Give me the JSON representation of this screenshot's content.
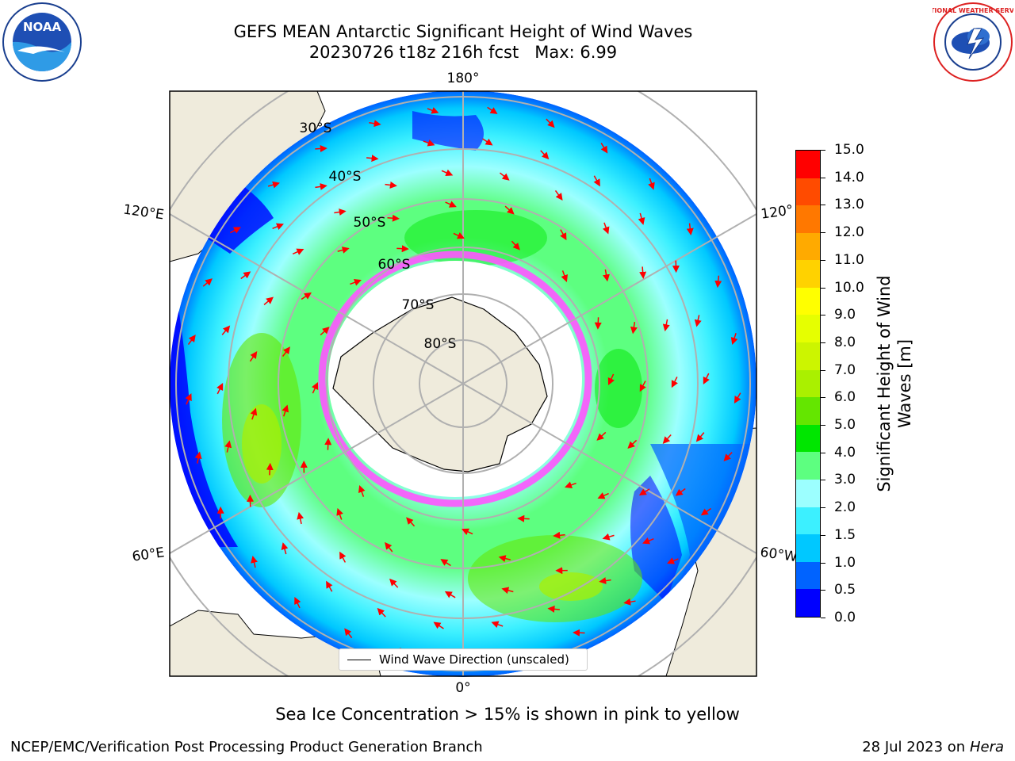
{
  "title": {
    "line1": "GEFS MEAN Antarctic Significant Height of Wind Waves",
    "line2": "20230726 t18z 216h fcst   Max: 6.99"
  },
  "legend": {
    "label": "Wind Wave Direction (unscaled)"
  },
  "note": "Sea Ice Concentration > 15% is shown in pink to yellow",
  "footer": {
    "left": "NCEP/EMC/Verification Post Processing Product Generation Branch",
    "right_date": "28 Jul 2023 on ",
    "right_machine": "Hera"
  },
  "logos": {
    "left": "NOAA",
    "right": "NATIONAL WEATHER SERVICE"
  },
  "colorbar": {
    "label_line1": "Significant Height of Wind",
    "label_line2": "Waves [m]",
    "ticks": [
      "0.0",
      "0.5",
      "1.0",
      "1.5",
      "2.0",
      "3.0",
      "4.0",
      "5.0",
      "6.0",
      "7.0",
      "8.0",
      "9.0",
      "10.0",
      "11.0",
      "12.0",
      "13.0",
      "14.0",
      "15.0"
    ],
    "colors": [
      "#0000ff",
      "#0063ff",
      "#00c8ff",
      "#3cf0ff",
      "#9cffff",
      "#5dff80",
      "#00e600",
      "#64e600",
      "#aaf000",
      "#ccf500",
      "#e6ff00",
      "#ffff00",
      "#ffd200",
      "#ffaa00",
      "#ff7800",
      "#ff4b00",
      "#ff0000"
    ]
  },
  "map_labels": {
    "lon_180": "180°",
    "lon_0": "0°",
    "lon_120e": "120°E",
    "lon_120w": "120°",
    "lon_60e": "60°E",
    "lon_60w": "60°W",
    "lat_30": "30°S",
    "lat_40": "40°S",
    "lat_50": "50°S",
    "lat_60": "60°S",
    "lat_70": "70°S",
    "lat_80": "80°S"
  },
  "colors": {
    "land": "#efebdc",
    "grid": "#b0b0b0",
    "arrow": "#ff0000"
  }
}
